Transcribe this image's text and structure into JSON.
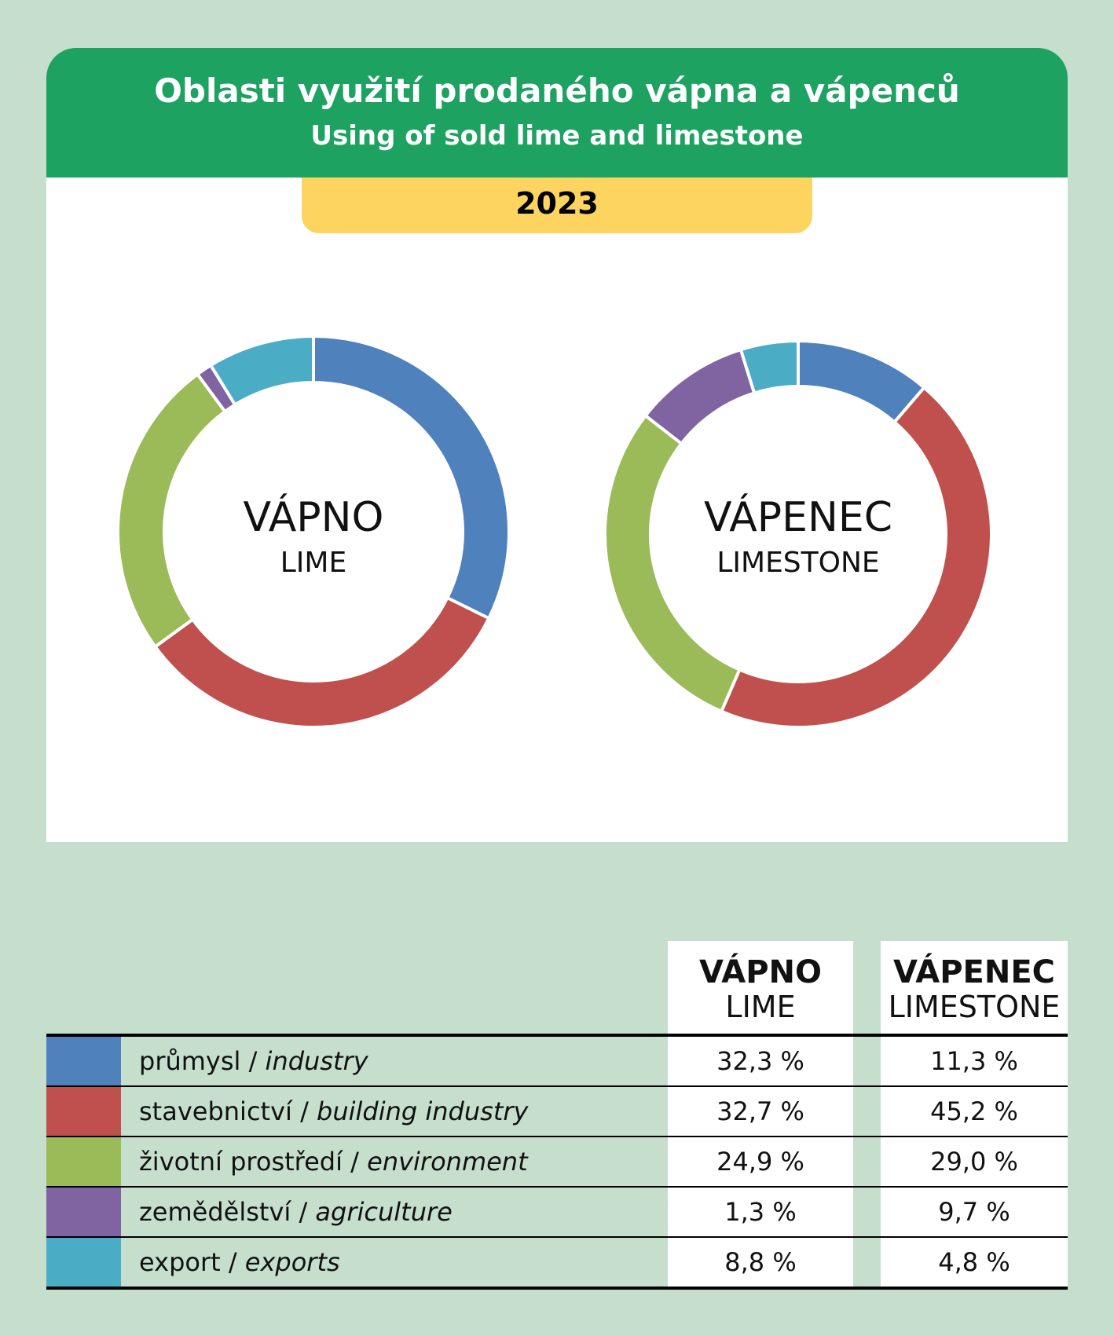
{
  "header": {
    "title": "Oblasti využití prodaného vápna a vápenců",
    "subtitle": "Using of sold lime and limestone",
    "year": "2023"
  },
  "colors": {
    "industry": "#4f81bd",
    "building": "#c0504d",
    "environment": "#9bbb59",
    "agriculture": "#8064a2",
    "exports": "#4bacc6"
  },
  "chart_data": [
    {
      "type": "pie",
      "variant": "donut",
      "center_label": "VÁPNO",
      "center_sublabel": "LIME",
      "categories": [
        "průmysl / industry",
        "stavebnictví / building industry",
        "životní prostředí / environment",
        "zemědělství / agriculture",
        "export / exports"
      ],
      "values": [
        32.3,
        32.7,
        24.9,
        1.3,
        8.8
      ],
      "unit": "%"
    },
    {
      "type": "pie",
      "variant": "donut",
      "center_label": "VÁPENEC",
      "center_sublabel": "LIMESTONE",
      "categories": [
        "průmysl / industry",
        "stavebnictví / building industry",
        "životní prostředí / environment",
        "zemědělství / agriculture",
        "export / exports"
      ],
      "values": [
        11.3,
        45.2,
        29.0,
        9.7,
        4.8
      ],
      "unit": "%"
    }
  ],
  "table": {
    "col1_title": "VÁPNO",
    "col1_sub": "LIME",
    "col2_title": "VÁPENEC",
    "col2_sub": "LIMESTONE",
    "rows": [
      {
        "cz": "průmysl / ",
        "en": "industry",
        "lime": "32,3 %",
        "limestone": "11,3 %"
      },
      {
        "cz": "stavebnictví / ",
        "en": "building industry",
        "lime": "32,7 %",
        "limestone": "45,2 %"
      },
      {
        "cz": "životní prostředí / ",
        "en": "environment",
        "lime": "24,9 %",
        "limestone": "29,0 %"
      },
      {
        "cz": "zemědělství / ",
        "en": "agriculture",
        "lime": "1,3 %",
        "limestone": "9,7 %"
      },
      {
        "cz": "export / ",
        "en": "exports",
        "lime": "8,8 %",
        "limestone": "4,8 %"
      }
    ]
  }
}
